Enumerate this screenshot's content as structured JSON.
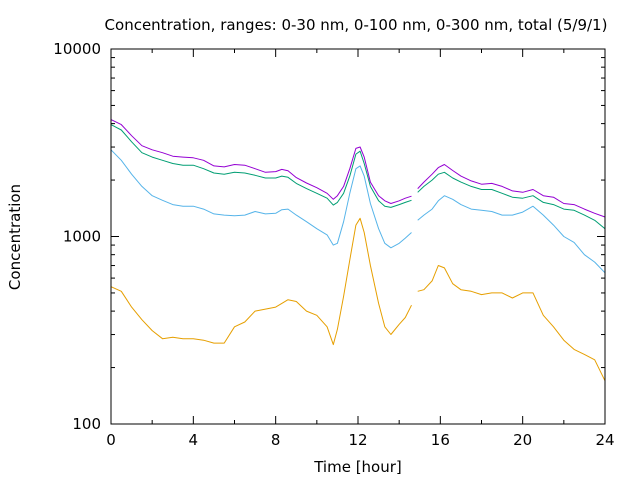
{
  "chart_data": {
    "type": "line",
    "title": "Concentration, ranges: 0-30 nm, 0-100 nm, 0-300 nm, total (5/9/1)",
    "xlabel": "Time [hour]",
    "ylabel": "Concentration",
    "xlim": [
      0,
      24
    ],
    "ylim": [
      100,
      10000
    ],
    "yscale": "log",
    "x_ticks": [
      0,
      4,
      8,
      12,
      16,
      20,
      24
    ],
    "y_ticks": [
      100,
      1000,
      10000
    ],
    "x_tick_labels": [
      "0",
      "4",
      "8",
      "12",
      "16",
      "20",
      "24"
    ],
    "y_tick_labels": [
      "100",
      "1000",
      "10000"
    ],
    "grid": false,
    "legend": "none",
    "gap": [
      14.6,
      14.9
    ],
    "series": [
      {
        "color": "#E69F00",
        "x": [
          0,
          0.5,
          1,
          1.5,
          2,
          2.5,
          3,
          3.5,
          4,
          4.5,
          5,
          5.5,
          6,
          6.5,
          7,
          7.5,
          8,
          8.3,
          8.6,
          9,
          9.5,
          10,
          10.5,
          10.8,
          11,
          11.3,
          11.6,
          11.9,
          12.1,
          12.3,
          12.6,
          13,
          13.3,
          13.6,
          14,
          14.3,
          14.6,
          14.9,
          15.2,
          15.6,
          15.9,
          16.2,
          16.6,
          17,
          17.5,
          18,
          18.5,
          19,
          19.5,
          20,
          20.5,
          21,
          21.5,
          22,
          22.5,
          23,
          23.5,
          24
        ],
        "y": [
          540,
          510,
          420,
          360,
          315,
          285,
          290,
          285,
          285,
          280,
          270,
          270,
          330,
          350,
          400,
          410,
          420,
          440,
          460,
          450,
          400,
          380,
          330,
          265,
          320,
          480,
          750,
          1150,
          1250,
          1050,
          700,
          440,
          330,
          300,
          340,
          370,
          430,
          510,
          520,
          580,
          700,
          680,
          560,
          520,
          510,
          490,
          500,
          500,
          470,
          500,
          500,
          380,
          330,
          280,
          250,
          235,
          220,
          170
        ]
      },
      {
        "color": "#56B4E9",
        "x": [
          0,
          0.5,
          1,
          1.5,
          2,
          2.5,
          3,
          3.5,
          4,
          4.5,
          5,
          5.5,
          6,
          6.5,
          7,
          7.5,
          8,
          8.3,
          8.6,
          9,
          9.5,
          10,
          10.5,
          10.8,
          11,
          11.3,
          11.6,
          11.9,
          12.1,
          12.3,
          12.6,
          13,
          13.3,
          13.6,
          14,
          14.3,
          14.6,
          14.9,
          15.2,
          15.6,
          15.9,
          16.2,
          16.6,
          17,
          17.5,
          18,
          18.5,
          19,
          19.5,
          20,
          20.5,
          21,
          21.5,
          22,
          22.5,
          23,
          23.5,
          24
        ],
        "y": [
          2900,
          2550,
          2150,
          1850,
          1650,
          1560,
          1480,
          1450,
          1450,
          1400,
          1320,
          1300,
          1290,
          1300,
          1360,
          1320,
          1330,
          1390,
          1400,
          1300,
          1200,
          1100,
          1020,
          900,
          920,
          1200,
          1700,
          2300,
          2380,
          2100,
          1500,
          1100,
          920,
          870,
          920,
          980,
          1050,
          1220,
          1300,
          1400,
          1550,
          1650,
          1580,
          1480,
          1400,
          1380,
          1360,
          1300,
          1300,
          1350,
          1450,
          1300,
          1150,
          1000,
          930,
          800,
          730,
          640
        ]
      },
      {
        "color": "#009E73",
        "x": [
          0,
          0.5,
          1,
          1.5,
          2,
          2.5,
          3,
          3.5,
          4,
          4.5,
          5,
          5.5,
          6,
          6.5,
          7,
          7.5,
          8,
          8.3,
          8.6,
          9,
          9.5,
          10,
          10.5,
          10.8,
          11,
          11.3,
          11.6,
          11.9,
          12.1,
          12.3,
          12.6,
          13,
          13.3,
          13.6,
          14,
          14.3,
          14.6,
          14.9,
          15.2,
          15.6,
          15.9,
          16.2,
          16.6,
          17,
          17.5,
          18,
          18.5,
          19,
          19.5,
          20,
          20.5,
          21,
          21.5,
          22,
          22.5,
          23,
          23.5,
          24
        ],
        "y": [
          3950,
          3700,
          3200,
          2800,
          2650,
          2550,
          2450,
          2400,
          2400,
          2300,
          2180,
          2150,
          2200,
          2180,
          2120,
          2050,
          2050,
          2100,
          2070,
          1920,
          1800,
          1700,
          1600,
          1470,
          1520,
          1700,
          2100,
          2750,
          2850,
          2450,
          1850,
          1550,
          1450,
          1430,
          1480,
          1520,
          1560,
          1720,
          1850,
          2000,
          2150,
          2200,
          2050,
          1950,
          1850,
          1780,
          1780,
          1700,
          1620,
          1600,
          1650,
          1520,
          1480,
          1400,
          1380,
          1300,
          1220,
          1100
        ]
      },
      {
        "color": "#9400D3",
        "x": [
          0,
          0.5,
          1,
          1.5,
          2,
          2.5,
          3,
          3.5,
          4,
          4.5,
          5,
          5.5,
          6,
          6.5,
          7,
          7.5,
          8,
          8.3,
          8.6,
          9,
          9.5,
          10,
          10.5,
          10.8,
          11,
          11.3,
          11.6,
          11.9,
          12.1,
          12.3,
          12.6,
          13,
          13.3,
          13.6,
          14,
          14.3,
          14.6,
          14.9,
          15.2,
          15.6,
          15.9,
          16.2,
          16.6,
          17,
          17.5,
          18,
          18.5,
          19,
          19.5,
          20,
          20.5,
          21,
          21.5,
          22,
          22.5,
          23,
          23.5,
          24
        ],
        "y": [
          4200,
          3950,
          3450,
          3050,
          2900,
          2800,
          2680,
          2650,
          2630,
          2550,
          2380,
          2350,
          2420,
          2400,
          2300,
          2200,
          2220,
          2280,
          2240,
          2060,
          1930,
          1820,
          1700,
          1580,
          1650,
          1850,
          2300,
          2950,
          3000,
          2650,
          1950,
          1650,
          1550,
          1500,
          1550,
          1600,
          1640,
          1800,
          1950,
          2150,
          2330,
          2420,
          2250,
          2100,
          1980,
          1900,
          1920,
          1850,
          1750,
          1720,
          1780,
          1650,
          1620,
          1500,
          1480,
          1400,
          1330,
          1270
        ]
      }
    ]
  }
}
